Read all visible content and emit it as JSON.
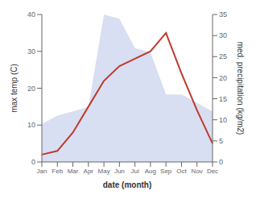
{
  "chart_data": {
    "type": "line",
    "categories": [
      "Jan",
      "Feb",
      "Mar",
      "Apr",
      "May",
      "Jun",
      "Jul",
      "Aug",
      "Sep",
      "Oct",
      "Nov",
      "Dec"
    ],
    "xlabel": "date (month)",
    "ylabel": "max temp (C)",
    "y2label": "med. precipitation (kg/m2)",
    "ylim": [
      0,
      40
    ],
    "yticks": [
      0,
      10,
      20,
      30,
      40
    ],
    "y2lim": [
      0,
      35
    ],
    "y2ticks": [
      0,
      5,
      10,
      15,
      20,
      25,
      30,
      35
    ],
    "grid": false,
    "series": [
      {
        "type": "area",
        "axis": "y2",
        "color": "#b8c4e8",
        "values": [
          9,
          11,
          12,
          13,
          35,
          34,
          27,
          26,
          16,
          16,
          14,
          12
        ]
      },
      {
        "type": "line",
        "color": "#c0392b",
        "values": [
          2,
          3,
          8,
          15,
          22,
          26,
          28,
          30,
          35,
          24,
          14,
          5
        ]
      }
    ]
  }
}
